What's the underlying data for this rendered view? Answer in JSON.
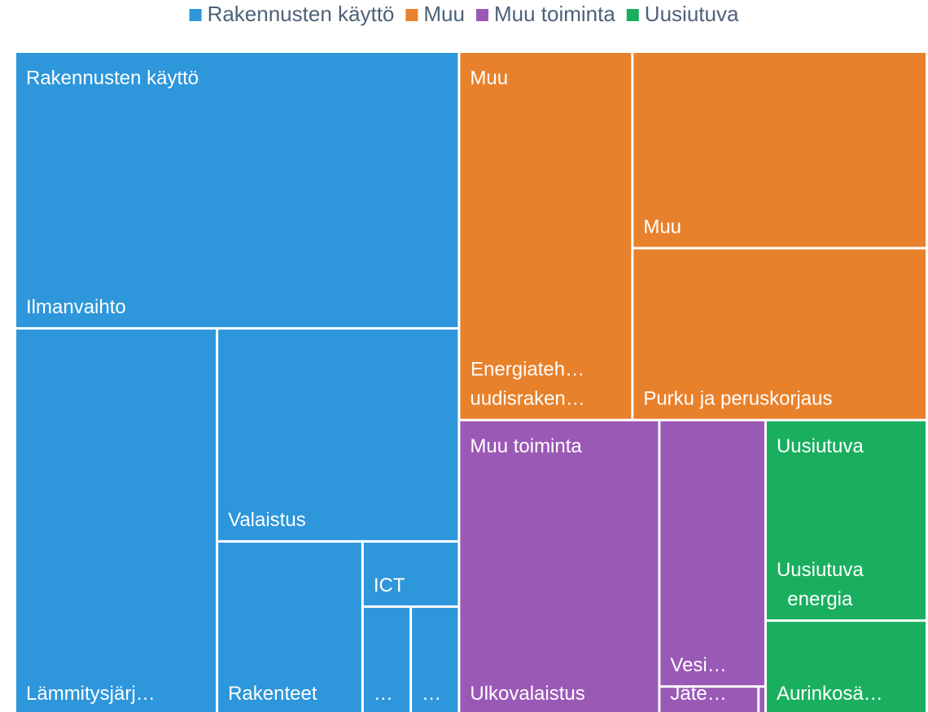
{
  "chart_data": {
    "type": "treemap",
    "legend": "top",
    "series": [
      {
        "name": "Rakennusten käyttö",
        "color": "#2e96db",
        "children": [
          {
            "label": "Ilmanvaihto",
            "value": 183.5
          },
          {
            "label": "Lämmitysjärj…",
            "value": 116.6
          },
          {
            "label": "Valaistus",
            "value": 77
          },
          {
            "label": "Rakenteet",
            "value": 37.7
          },
          {
            "label": "ICT",
            "value": 9.4
          },
          {
            "label": "…",
            "value": 7.8
          },
          {
            "label": "…",
            "value": 7.8
          }
        ]
      },
      {
        "name": "Muu",
        "color": "#e8812b",
        "children": [
          {
            "label": [
              "Energiateh…",
              "uudisraken…"
            ],
            "value": 95.4
          },
          {
            "label": "Muu",
            "value": 86.4
          },
          {
            "label": "Purku ja peruskorjaus",
            "value": 75.6
          }
        ]
      },
      {
        "name": "Muu toiminta",
        "color": "#9b59b6",
        "children": [
          {
            "label": "Ulkovalaistus",
            "value": 88.2
          },
          {
            "label": "Vesi…",
            "value": 42.3
          },
          {
            "label": "Jäte…",
            "value": 4.2
          },
          {
            "label": null,
            "value": 0.3
          }
        ]
      },
      {
        "name": "Uusiutuva",
        "color": "#1aaf5f",
        "children": [
          {
            "label": [
              "Uusiutuva",
              "energia"
            ],
            "value": 48.3
          },
          {
            "label": "Aurinkosä…",
            "value": 22.7
          }
        ]
      }
    ]
  }
}
